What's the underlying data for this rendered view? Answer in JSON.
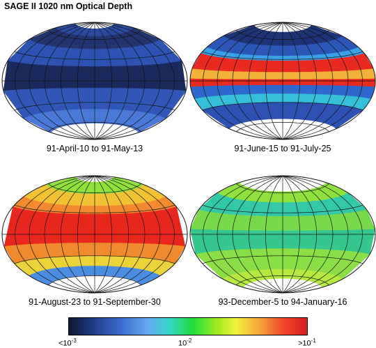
{
  "title": "SAGE II 1020 nm Optical Depth",
  "panels": [
    {
      "caption": "91-April-10 to 91-May-13",
      "bands": [
        {
          "lat": [
            90,
            78
          ],
          "color": "#ffffff"
        },
        {
          "lat": [
            78,
            65
          ],
          "color": "#2a4aa0"
        },
        {
          "lat": [
            65,
            45
          ],
          "color": "#22356e"
        },
        {
          "lat": [
            45,
            20
          ],
          "color": "#2d52b4"
        },
        {
          "lat": [
            20,
            -10
          ],
          "color": "#1a2a5c"
        },
        {
          "lat": [
            -10,
            -40
          ],
          "color": "#3057b8"
        },
        {
          "lat": [
            -40,
            -62
          ],
          "color": "#4a78d8"
        },
        {
          "lat": [
            -62,
            -90
          ],
          "color": "#ffffff"
        }
      ]
    },
    {
      "caption": "91-June-15 to 91-July-25",
      "bands": [
        {
          "lat": [
            90,
            72
          ],
          "color": "#ffffff"
        },
        {
          "lat": [
            72,
            50
          ],
          "color": "#1d3577"
        },
        {
          "lat": [
            50,
            35
          ],
          "color": "#2c56b8"
        },
        {
          "lat": [
            35,
            28
          ],
          "color": "#3aa0e8"
        },
        {
          "lat": [
            28,
            12
          ],
          "color": "#e82a22"
        },
        {
          "lat": [
            12,
            2
          ],
          "color": "#f2b23a"
        },
        {
          "lat": [
            2,
            -6
          ],
          "color": "#e82a22"
        },
        {
          "lat": [
            -6,
            -18
          ],
          "color": "#2f69d0"
        },
        {
          "lat": [
            -18,
            -30
          ],
          "color": "#36c0d8"
        },
        {
          "lat": [
            -30,
            -55
          ],
          "color": "#2d52b4"
        },
        {
          "lat": [
            -55,
            -90
          ],
          "color": "#ffffff"
        }
      ]
    },
    {
      "caption": "91-August-23 to 91-September-30",
      "bands": [
        {
          "lat": [
            90,
            78
          ],
          "color": "#ffffff"
        },
        {
          "lat": [
            78,
            58
          ],
          "color": "#8ee23a"
        },
        {
          "lat": [
            58,
            40
          ],
          "color": "#f1c232"
        },
        {
          "lat": [
            40,
            28
          ],
          "color": "#f38a30"
        },
        {
          "lat": [
            28,
            -12
          ],
          "color": "#e8281f"
        },
        {
          "lat": [
            -12,
            -30
          ],
          "color": "#f08a2c"
        },
        {
          "lat": [
            -30,
            -45
          ],
          "color": "#ecd438"
        },
        {
          "lat": [
            -45,
            -60
          ],
          "color": "#4b8de0"
        },
        {
          "lat": [
            -60,
            -90
          ],
          "color": "#ffffff"
        }
      ]
    },
    {
      "caption": "93-December-5 to 94-January-16",
      "bands": [
        {
          "lat": [
            90,
            62
          ],
          "color": "#ffffff"
        },
        {
          "lat": [
            62,
            45
          ],
          "color": "#8fe23e"
        },
        {
          "lat": [
            45,
            25
          ],
          "color": "#33c8a8"
        },
        {
          "lat": [
            25,
            5
          ],
          "color": "#79d84a"
        },
        {
          "lat": [
            5,
            -20
          ],
          "color": "#36c78e"
        },
        {
          "lat": [
            -20,
            -50
          ],
          "color": "#8bde46"
        },
        {
          "lat": [
            -50,
            -65
          ],
          "color": "#b7ea3e"
        },
        {
          "lat": [
            -65,
            -90
          ],
          "color": "#ffffff"
        }
      ]
    }
  ],
  "colorbar": {
    "min_label": {
      "base": "<10",
      "exp": "-3"
    },
    "mid_label": {
      "base": "10",
      "exp": "-2"
    },
    "max_label": {
      "base": ">10",
      "exp": "-1"
    }
  }
}
